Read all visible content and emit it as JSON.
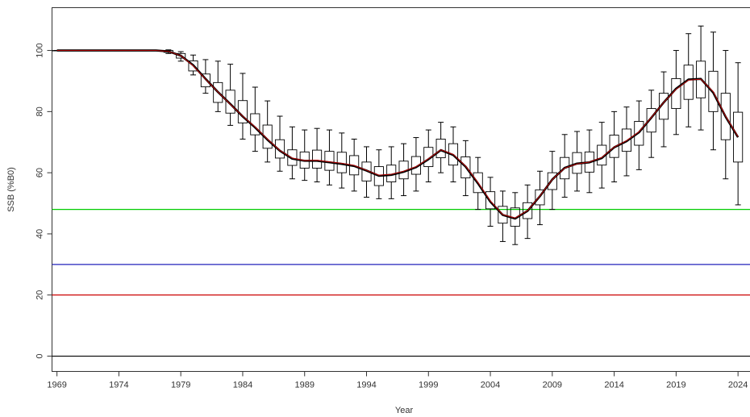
{
  "chart_data": {
    "type": "boxplot-line",
    "xlabel": "Year",
    "ylabel": "SSB (%B0)",
    "xlim": [
      1968.5,
      1971.5
    ],
    "xlim_full": [
      1968.6,
      2025
    ],
    "ylim": [
      -5,
      114
    ],
    "x_ticks": [
      1969,
      1974,
      1979,
      1984,
      1989,
      1994,
      1999,
      2004,
      2009,
      2014,
      2019,
      2024
    ],
    "y_ticks": [
      0,
      20,
      40,
      60,
      80,
      100
    ],
    "reference_lines": [
      {
        "y": 48,
        "color": "#00cc00"
      },
      {
        "y": 30,
        "color": "#2222bb"
      },
      {
        "y": 20,
        "color": "#cc0000"
      },
      {
        "y": 0,
        "color": "#000000"
      }
    ],
    "median_line_color": "#000000",
    "mean_line_color": "#cc0000",
    "years": [
      1969,
      1970,
      1971,
      1972,
      1973,
      1974,
      1975,
      1976,
      1977,
      1978,
      1979,
      1980,
      1981,
      1982,
      1983,
      1984,
      1985,
      1986,
      1987,
      1988,
      1989,
      1990,
      1991,
      1992,
      1993,
      1994,
      1995,
      1996,
      1997,
      1998,
      1999,
      2000,
      2001,
      2002,
      2003,
      2004,
      2005,
      2006,
      2007,
      2008,
      2009,
      2010,
      2011,
      2012,
      2013,
      2014,
      2015,
      2016,
      2017,
      2018,
      2019,
      2020,
      2021,
      2022,
      2023,
      2024
    ],
    "median": [
      100,
      100,
      100,
      100,
      100,
      100,
      100,
      100,
      100,
      99.7,
      98.3,
      95.2,
      90.7,
      86.4,
      82.5,
      78.4,
      74.8,
      70.8,
      67.2,
      64.6,
      63.9,
      63.9,
      63.4,
      62.9,
      62.2,
      60.7,
      59.0,
      59.3,
      60.3,
      61.8,
      64.4,
      67.4,
      65.8,
      62.0,
      56.5,
      50.5,
      46.2,
      45.0,
      47.5,
      52.3,
      57.8,
      61.6,
      63.0,
      63.4,
      64.8,
      68.3,
      70.3,
      73.2,
      78.0,
      83.0,
      87.5,
      90.5,
      90.7,
      86.2,
      78.3,
      71.6
    ],
    "q1": [
      100,
      100,
      100,
      100,
      100,
      100,
      100,
      100,
      100,
      99.4,
      97.5,
      93.3,
      88.1,
      83.0,
      79.5,
      76.3,
      72.4,
      68.0,
      64.8,
      62.4,
      61.5,
      61.5,
      60.8,
      60.0,
      59.3,
      57.3,
      55.8,
      57.0,
      58.0,
      59.5,
      62.0,
      64.9,
      62.5,
      58.3,
      53.5,
      48.2,
      43.5,
      42.5,
      45.0,
      49.5,
      54.5,
      58.0,
      59.8,
      60.2,
      62.5,
      65.0,
      67.0,
      69.0,
      73.3,
      77.5,
      81.0,
      84.0,
      84.5,
      80.0,
      70.8,
      63.5
    ],
    "q3": [
      100,
      100,
      100,
      100,
      100,
      100,
      100,
      100,
      100,
      100,
      99.0,
      96.6,
      92.3,
      89.5,
      87.0,
      83.6,
      79.3,
      75.6,
      70.8,
      67.5,
      66.8,
      67.4,
      67.0,
      66.7,
      65.6,
      63.5,
      62.0,
      62.5,
      63.8,
      65.3,
      68.3,
      71.0,
      69.5,
      65.2,
      60.0,
      53.8,
      49.0,
      48.5,
      50.2,
      54.4,
      60.0,
      65.0,
      66.6,
      66.8,
      69.0,
      72.3,
      74.3,
      76.8,
      81.0,
      86.0,
      90.8,
      95.2,
      96.5,
      93.2,
      86.0,
      79.8
    ],
    "low": [
      100,
      100,
      100,
      100,
      100,
      100,
      100,
      100,
      100,
      99.0,
      96.5,
      92.0,
      86.0,
      80.0,
      75.5,
      71.0,
      67.0,
      63.5,
      60.5,
      58.0,
      57.5,
      57.0,
      56.0,
      55.0,
      54.0,
      52.0,
      51.5,
      51.5,
      52.5,
      54.0,
      57.0,
      60.0,
      57.0,
      52.5,
      48.0,
      42.5,
      37.5,
      36.5,
      38.5,
      43.0,
      48.0,
      52.0,
      54.0,
      53.5,
      55.0,
      57.0,
      59.0,
      61.0,
      65.0,
      68.5,
      72.5,
      75.0,
      74.0,
      67.5,
      58.0,
      49.5
    ],
    "high": [
      100,
      100,
      100,
      100,
      100,
      100,
      100,
      100,
      100,
      100.2,
      99.6,
      98.5,
      97.0,
      96.5,
      95.5,
      92.5,
      88.0,
      83.5,
      78.5,
      75.0,
      74.0,
      74.5,
      74.0,
      73.0,
      71.0,
      68.5,
      67.5,
      68.5,
      69.5,
      71.5,
      74.0,
      76.5,
      75.0,
      70.5,
      65.0,
      58.5,
      54.0,
      53.5,
      56.0,
      60.5,
      67.0,
      72.5,
      73.5,
      74.0,
      76.5,
      80.0,
      81.5,
      83.5,
      87.0,
      93.0,
      100.0,
      105.5,
      108.0,
      106.0,
      100.0,
      96.0
    ],
    "mean": [
      100,
      100,
      100,
      100,
      100,
      100,
      100,
      100,
      100,
      99.7,
      98.3,
      95.0,
      90.6,
      86.4,
      82.4,
      78.5,
      75.0,
      71.0,
      67.3,
      64.8,
      64.0,
      64.1,
      63.6,
      63.1,
      62.4,
      60.8,
      59.2,
      59.5,
      60.5,
      62.0,
      64.6,
      67.5,
      66.0,
      62.2,
      56.8,
      50.8,
      46.3,
      45.2,
      47.6,
      52.4,
      57.8,
      61.5,
      62.9,
      63.5,
      65.0,
      68.4,
      70.5,
      73.4,
      78.1,
      83.0,
      87.3,
      90.3,
      90.6,
      86.5,
      78.5,
      71.8
    ]
  }
}
